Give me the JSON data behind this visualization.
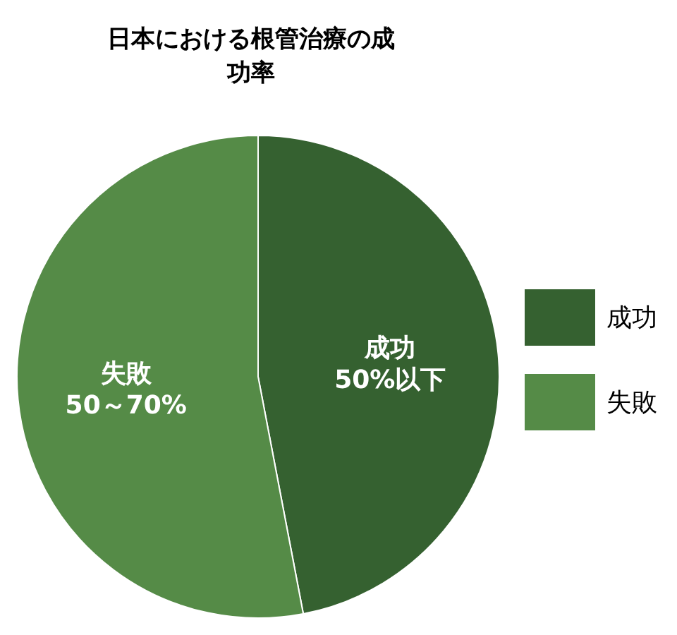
{
  "chart_data": {
    "type": "pie",
    "title": "日本における根管治療の成功率",
    "categories": [
      "成功",
      "失敗"
    ],
    "values": [
      47,
      53
    ],
    "colors": [
      "#356130",
      "#558b47"
    ],
    "annotations": [
      {
        "text": "50%以下",
        "x": "成功"
      },
      {
        "text": "50～70%",
        "x": "失敗"
      }
    ],
    "legend": "right"
  }
}
